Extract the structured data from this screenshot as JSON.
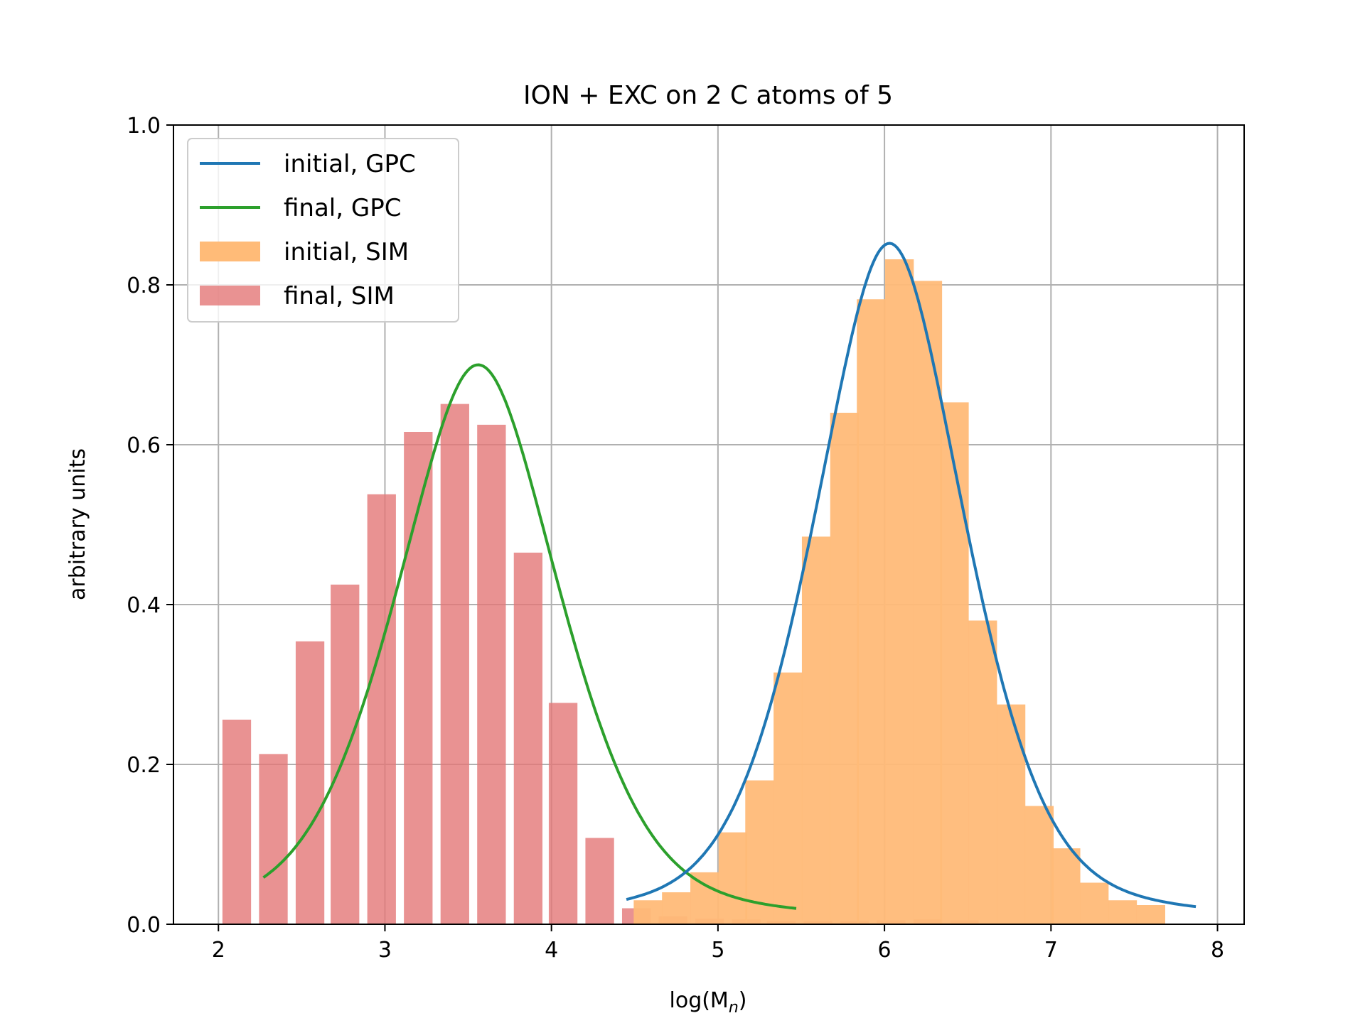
{
  "chart_data": {
    "type": "bar",
    "title": "ION + EXC on 2 C atoms of 5",
    "xlabel_main": "log(M",
    "xlabel_sub": "n",
    "xlabel_close": ")",
    "ylabel": "arbitrary units",
    "xlim": [
      1.73,
      8.16
    ],
    "ylim": [
      0,
      1
    ],
    "xticks": [
      2,
      3,
      4,
      5,
      6,
      7,
      8
    ],
    "yticks": [
      0.0,
      0.2,
      0.4,
      0.6,
      0.8,
      1.0
    ],
    "ytick_labels": [
      "0.0",
      "0.2",
      "0.4",
      "0.6",
      "0.8",
      "1.0"
    ],
    "grid": true,
    "legend_position": "top-left",
    "colors": {
      "initial_gpc": "#1f77b4",
      "final_gpc": "#2ca02c",
      "initial_sim": "#ffbb78",
      "final_sim": "#e37777"
    },
    "bar_width": 0.172,
    "series": [
      {
        "name": "initial, GPC",
        "kind": "line",
        "color": "#1f77b4",
        "curve": {
          "amplitude": 0.852,
          "center": 6.03,
          "sigma": 0.48,
          "x_from": 4.45,
          "x_to": 7.87
        }
      },
      {
        "name": "final, GPC",
        "kind": "line",
        "color": "#2ca02c",
        "curve": {
          "amplitude": 0.7,
          "center": 3.56,
          "sigma": 0.52,
          "x_from": 2.27,
          "x_to": 5.47
        }
      },
      {
        "name": "initial, SIM",
        "kind": "bar",
        "color": "#ffbb78",
        "x": [
          4.58,
          4.75,
          4.92,
          5.09,
          5.25,
          5.42,
          5.59,
          5.76,
          5.92,
          6.09,
          6.26,
          6.42,
          6.59,
          6.76,
          6.93,
          7.09,
          7.26,
          7.43,
          7.6
        ],
        "values": [
          0.03,
          0.04,
          0.065,
          0.115,
          0.18,
          0.315,
          0.485,
          0.64,
          0.782,
          0.832,
          0.805,
          0.653,
          0.38,
          0.275,
          0.148,
          0.095,
          0.052,
          0.03,
          0.024
        ]
      },
      {
        "name": "final, SIM",
        "kind": "bar",
        "color": "#e37777",
        "x": [
          2.11,
          2.33,
          2.55,
          2.76,
          2.98,
          3.2,
          3.42,
          3.64,
          3.86,
          4.07,
          4.29,
          4.51,
          4.73,
          4.95,
          5.17,
          5.38,
          5.6,
          5.82,
          6.04,
          6.26,
          6.48
        ],
        "values": [
          0.256,
          0.213,
          0.354,
          0.425,
          0.538,
          0.616,
          0.651,
          0.625,
          0.465,
          0.277,
          0.108,
          0.02,
          0.01,
          0.007,
          0.006,
          0.004,
          0.004,
          0.004,
          0.005,
          0.006,
          0.005
        ]
      }
    ]
  }
}
